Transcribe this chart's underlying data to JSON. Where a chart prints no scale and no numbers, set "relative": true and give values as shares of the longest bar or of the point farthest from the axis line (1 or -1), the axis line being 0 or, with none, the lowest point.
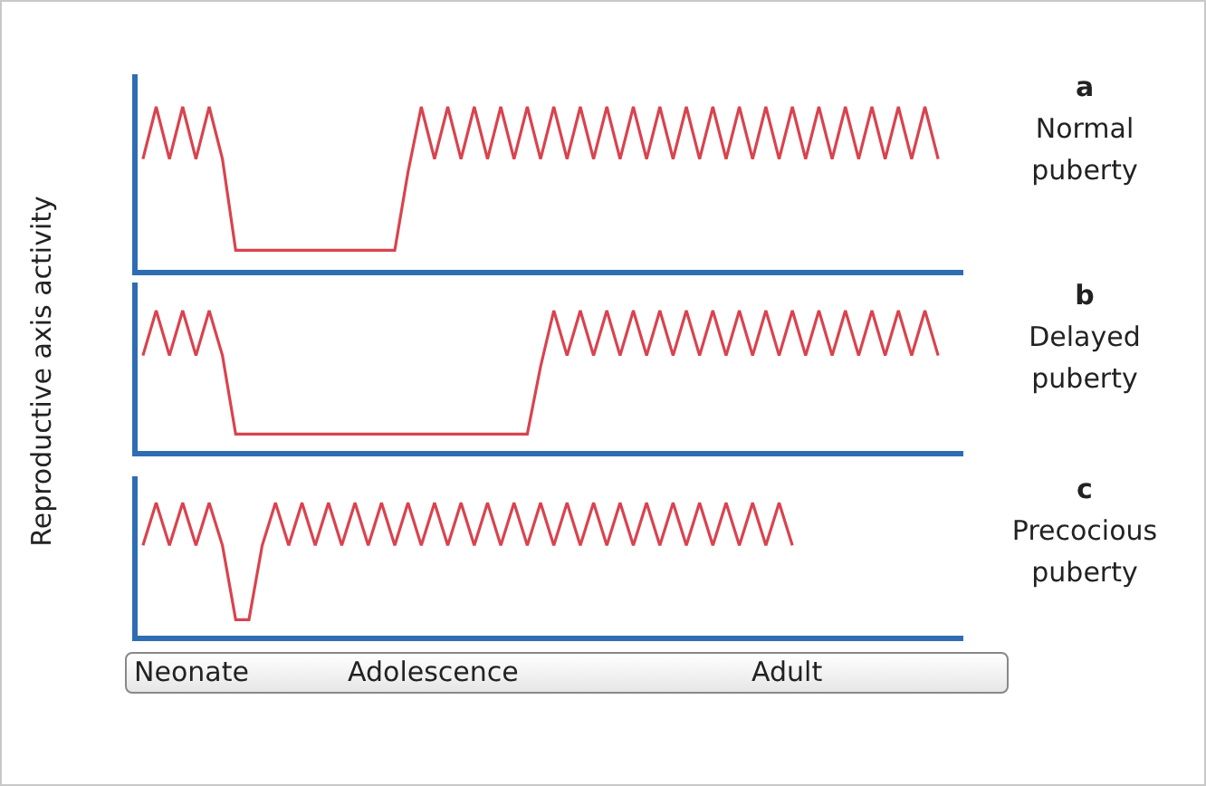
{
  "chart_data": [
    {
      "type": "line",
      "relative": true,
      "color": "#d9434e",
      "annotations": [
        "a",
        "Normal puberty"
      ],
      "categories": [
        null,
        null,
        null,
        null,
        null,
        null,
        null,
        null,
        null,
        null,
        null,
        null,
        null,
        null,
        null,
        null,
        null,
        null,
        null,
        null,
        null,
        null,
        null,
        null,
        null,
        null,
        null,
        null,
        null,
        null,
        null,
        null,
        null,
        null,
        null,
        null,
        null,
        null,
        null,
        null,
        null,
        null,
        null,
        null,
        null,
        null,
        null,
        null,
        null,
        null,
        null,
        null,
        null,
        null,
        null,
        null,
        null,
        null,
        null,
        null,
        null
      ],
      "values": [
        0.68,
        1,
        0.68,
        1,
        0.68,
        1,
        0.68,
        0.12,
        0.12,
        0.12,
        0.12,
        0.12,
        0.12,
        0.12,
        0.12,
        0.12,
        0.12,
        0.12,
        0.12,
        0.12,
        0.6,
        1,
        0.68,
        1,
        0.68,
        1,
        0.68,
        1,
        0.68,
        1,
        0.68,
        1,
        0.68,
        1,
        0.68,
        1,
        0.68,
        1,
        0.68,
        1,
        0.68,
        1,
        0.68,
        1,
        0.68,
        1,
        0.68,
        1,
        0.68,
        1,
        0.68,
        1,
        0.68,
        1,
        0.68,
        1,
        0.68,
        1,
        0.68,
        1,
        0.68
      ]
    },
    {
      "type": "line",
      "relative": true,
      "color": "#d9434e",
      "ylabel": "Reproductive axis activity",
      "annotations": [
        "b",
        "Delayed puberty"
      ],
      "categories": [
        null,
        null,
        null,
        null,
        null,
        null,
        null,
        null,
        null,
        null,
        null,
        null,
        null,
        null,
        null,
        null,
        null,
        null,
        null,
        null,
        null,
        null,
        null,
        null,
        null,
        null,
        null,
        null,
        null,
        null,
        null,
        null,
        null,
        null,
        null,
        null,
        null,
        null,
        null,
        null,
        null,
        null,
        null,
        null,
        null,
        null,
        null,
        null,
        null,
        null,
        null,
        null,
        null,
        null,
        null,
        null,
        null,
        null,
        null,
        null,
        null
      ],
      "values": [
        0.68,
        1,
        0.68,
        1,
        0.68,
        1,
        0.68,
        0.12,
        0.12,
        0.12,
        0.12,
        0.12,
        0.12,
        0.12,
        0.12,
        0.12,
        0.12,
        0.12,
        0.12,
        0.12,
        0.12,
        0.12,
        0.12,
        0.12,
        0.12,
        0.12,
        0.12,
        0.12,
        0.12,
        0.12,
        0.6,
        1,
        0.68,
        1,
        0.68,
        1,
        0.68,
        1,
        0.68,
        1,
        0.68,
        1,
        0.68,
        1,
        0.68,
        1,
        0.68,
        1,
        0.68,
        1,
        0.68,
        1,
        0.68,
        1,
        0.68,
        1,
        0.68,
        1,
        0.68,
        1,
        0.68
      ]
    },
    {
      "type": "line",
      "relative": true,
      "color": "#d9434e",
      "annotations": [
        "c",
        "Precocious puberty",
        "Neonate",
        "Adolescence",
        "Adult"
      ],
      "categories": [
        null,
        null,
        null,
        null,
        null,
        null,
        null,
        null,
        null,
        null,
        null,
        null,
        null,
        null,
        null,
        null,
        null,
        null,
        null,
        null,
        null,
        null,
        null,
        null,
        null,
        null,
        null,
        null,
        null,
        null,
        null,
        null,
        null,
        null,
        null,
        null,
        null,
        null,
        null,
        null,
        null,
        null,
        null,
        null,
        null,
        null,
        null,
        null,
        null,
        null,
        null,
        null,
        null,
        null,
        null,
        null,
        null,
        null,
        null,
        null,
        null
      ],
      "values": [
        0.68,
        1,
        0.68,
        1,
        0.68,
        1,
        0.68,
        0.12,
        0.12,
        0.68,
        1,
        0.68,
        1,
        0.68,
        1,
        0.68,
        1,
        0.68,
        1,
        0.68,
        1,
        0.68,
        1,
        0.68,
        1,
        0.68,
        1,
        0.68,
        1,
        0.68,
        1,
        0.68,
        1,
        0.68,
        1,
        0.68,
        1,
        0.68,
        1,
        0.68,
        1,
        0.68,
        1,
        0.68,
        1,
        0.68,
        1,
        0.68,
        1,
        0.68,
        null,
        null,
        null,
        null,
        null,
        null,
        null,
        null,
        null,
        null,
        null
      ]
    }
  ]
}
